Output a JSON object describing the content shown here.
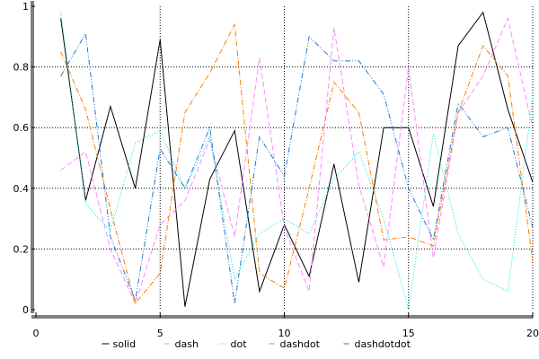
{
  "chart_data": {
    "type": "line",
    "title": "",
    "xlabel": "",
    "ylabel": "",
    "xlim": [
      0,
      20
    ],
    "ylim": [
      0,
      1
    ],
    "x_ticks": [
      0,
      5,
      10,
      15,
      20
    ],
    "y_ticks": [
      0,
      0.2,
      0.4,
      0.6,
      0.8,
      1
    ],
    "x_tick_labels": [
      "0",
      "5",
      "10",
      "15",
      "20"
    ],
    "y_tick_labels": [
      "0",
      "0.2",
      "0.4",
      "0.6",
      "0.8",
      "1"
    ],
    "grid": true,
    "legend_position": "bottom",
    "x": [
      1,
      2,
      3,
      4,
      5,
      6,
      7,
      8,
      9,
      10,
      11,
      12,
      13,
      14,
      15,
      16,
      17,
      18,
      19,
      20
    ],
    "series": [
      {
        "name": "solid",
        "color": "#000000",
        "dash": "",
        "values": [
          0.96,
          0.36,
          0.67,
          0.4,
          0.89,
          0.01,
          0.43,
          0.59,
          0.06,
          0.28,
          0.11,
          0.48,
          0.09,
          0.6,
          0.6,
          0.34,
          0.87,
          0.98,
          0.66,
          0.42
        ]
      },
      {
        "name": "dash",
        "color": "#ff88ff",
        "dash": "6 3",
        "values": [
          0.46,
          0.52,
          0.2,
          0.02,
          0.28,
          0.36,
          0.56,
          0.24,
          0.83,
          0.27,
          0.06,
          0.93,
          0.41,
          0.14,
          0.8,
          0.17,
          0.65,
          0.77,
          0.96,
          0.6
        ]
      },
      {
        "name": "dot",
        "color": "#00dddd",
        "dash": "1 2",
        "values": [
          0.98,
          0.35,
          0.26,
          0.55,
          0.59,
          0.4,
          0.57,
          0.1,
          0.25,
          0.3,
          0.25,
          0.43,
          0.52,
          0.3,
          0.0,
          0.58,
          0.25,
          0.1,
          0.06,
          0.7
        ]
      },
      {
        "name": "dashdot",
        "color": "#ff7f00",
        "dash": "6 2 1 2",
        "values": [
          0.85,
          0.66,
          0.33,
          0.02,
          0.12,
          0.65,
          0.78,
          0.94,
          0.12,
          0.07,
          0.4,
          0.75,
          0.65,
          0.23,
          0.24,
          0.21,
          0.65,
          0.87,
          0.77,
          0.16
        ]
      },
      {
        "name": "dashdotdot",
        "color": "#1f77d4",
        "dash": "6 2 1 2 1 2",
        "values": [
          0.77,
          0.91,
          0.24,
          0.03,
          0.53,
          0.4,
          0.6,
          0.02,
          0.57,
          0.44,
          0.9,
          0.82,
          0.82,
          0.71,
          0.4,
          0.23,
          0.68,
          0.57,
          0.6,
          0.27
        ]
      }
    ]
  }
}
